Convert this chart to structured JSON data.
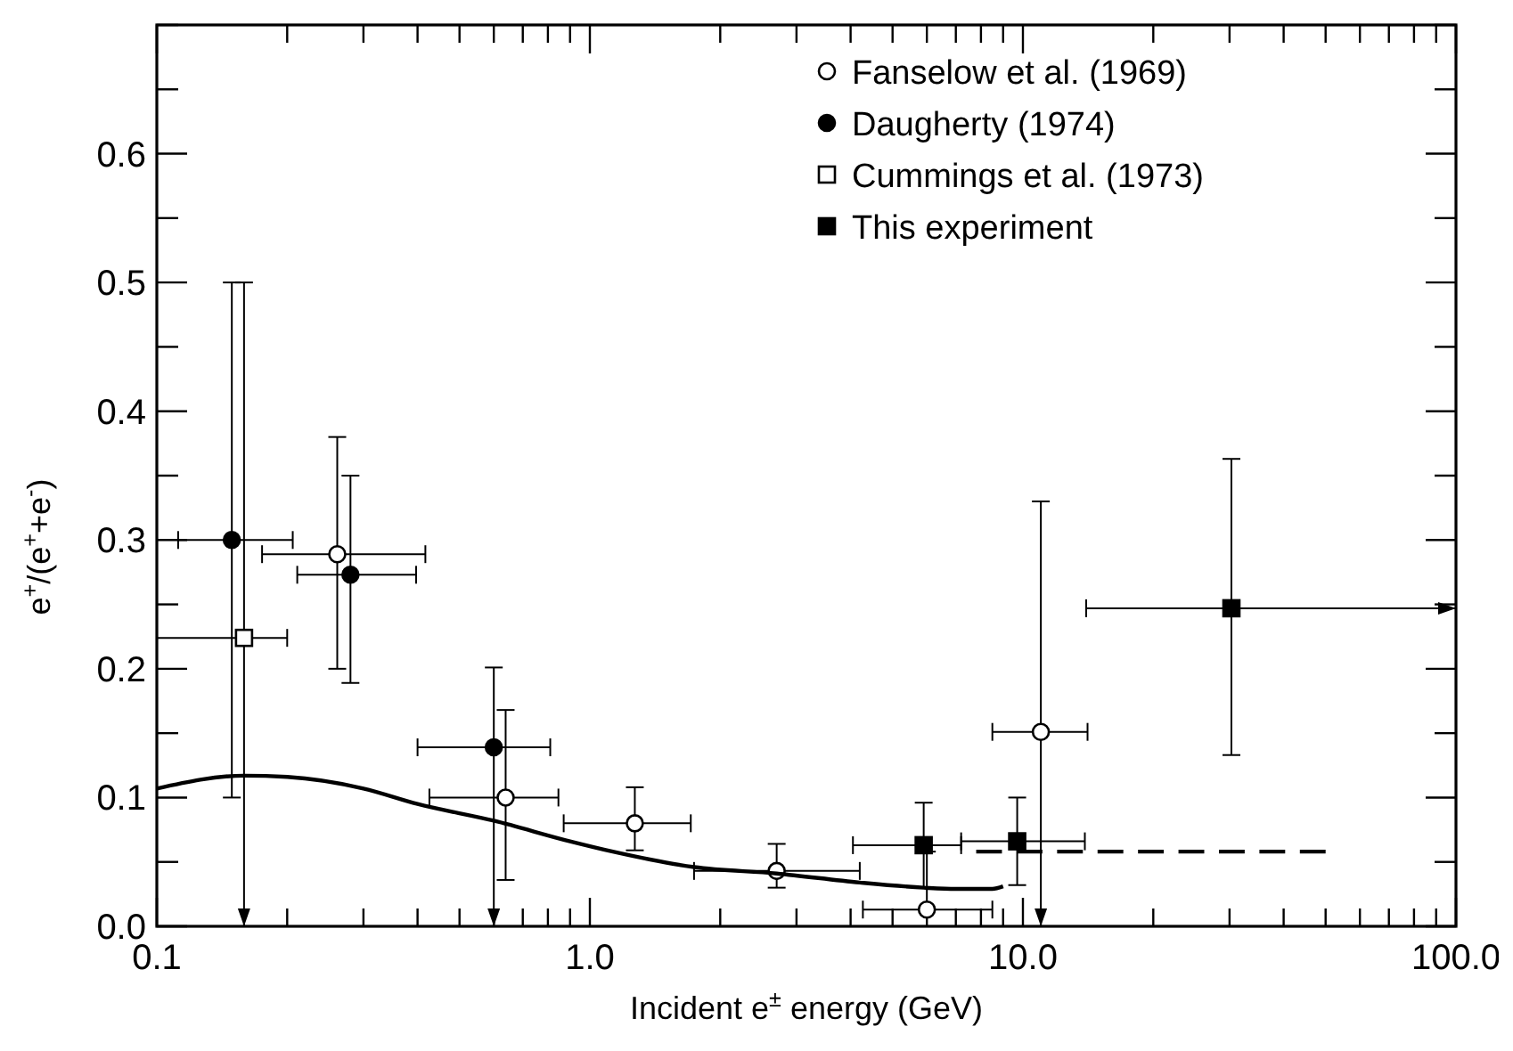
{
  "chart_data": {
    "type": "scatter",
    "xlabel": "Incident e$^{±}$ energy (GeV)",
    "ylabel": "e$^{+}$/(e$^{+}$+e$^{-}$)",
    "log": "x",
    "xlim": [
      0.1,
      100
    ],
    "xticks": [
      {
        "value": 0.1,
        "label": "0.1"
      },
      {
        "value": 0.2,
        "label": null
      },
      {
        "value": 0.3,
        "label": null
      },
      {
        "value": 0.4,
        "label": null
      },
      {
        "value": 0.5,
        "label": null
      },
      {
        "value": 0.6,
        "label": null
      },
      {
        "value": 0.7,
        "label": null
      },
      {
        "value": 0.8,
        "label": null
      },
      {
        "value": 0.9,
        "label": null
      },
      {
        "value": 1,
        "label": "1.0"
      },
      {
        "value": 2,
        "label": null
      },
      {
        "value": 3,
        "label": null
      },
      {
        "value": 4,
        "label": null
      },
      {
        "value": 5,
        "label": null
      },
      {
        "value": 6,
        "label": null
      },
      {
        "value": 7,
        "label": null
      },
      {
        "value": 8,
        "label": null
      },
      {
        "value": 9,
        "label": null
      },
      {
        "value": 10,
        "label": "10.0"
      },
      {
        "value": 20,
        "label": null
      },
      {
        "value": 30,
        "label": null
      },
      {
        "value": 40,
        "label": null
      },
      {
        "value": 50,
        "label": null
      },
      {
        "value": 60,
        "label": null
      },
      {
        "value": 70,
        "label": null
      },
      {
        "value": 80,
        "label": null
      },
      {
        "value": 90,
        "label": null
      },
      {
        "value": 100,
        "label": "100.0"
      }
    ],
    "ylim": [
      0,
      0.7
    ],
    "yticks": [
      {
        "value": 0,
        "label": "0.0"
      },
      {
        "value": 0.05,
        "label": null
      },
      0.1,
      {
        "value": 0.15,
        "label": null
      },
      0.2,
      {
        "value": 0.25,
        "label": null
      },
      0.3,
      {
        "value": 0.35,
        "label": null
      },
      0.4,
      {
        "value": 0.45,
        "label": null
      },
      0.5,
      {
        "value": 0.55,
        "label": null
      },
      0.6,
      {
        "value": 0.65,
        "label": null
      },
      {
        "value": 0.7,
        "label": null
      }
    ],
    "grid": false,
    "legend": "top",
    "series": [
      {
        "name": "Fanselow et al. (1969)",
        "marker": "circle",
        "color": "#ffffff",
        "x": [
          0.261,
          0.639,
          1.27,
          2.7,
          6.0,
          11.0
        ],
        "values": [
          0.289,
          0.1,
          0.08,
          0.043,
          0.013,
          0.151
        ],
        "errors": [
          [
            0.2,
            0.38
          ],
          [
            0.036,
            0.168
          ],
          [
            0.059,
            0.108
          ],
          [
            0.03,
            0.064
          ],
          [
            0.013,
            0.058
          ],
          [
            0,
            0.33
          ]
        ],
        "xerrors": [
          [
            0.175,
            0.417
          ],
          [
            0.426,
            0.846
          ],
          [
            0.87,
            1.71
          ],
          [
            1.74,
            4.2
          ],
          [
            4.27,
            8.5
          ],
          [
            8.5,
            14.1
          ]
        ]
      },
      {
        "name": "Daugherty (1974)",
        "marker": "circle",
        "color": "#000000",
        "x": [
          0.149,
          0.28,
          0.6
        ],
        "values": [
          0.3,
          0.273,
          0.139
        ],
        "errors": [
          [
            0.1,
            0.5
          ],
          [
            0.189,
            0.35
          ],
          [
            0,
            0.201
          ]
        ],
        "xerrors": [
          [
            0.112,
            0.206
          ],
          [
            0.211,
            0.397
          ],
          [
            0.4,
            0.81
          ]
        ]
      },
      {
        "name": "Cummings et al. (1973)",
        "marker": "square",
        "color": "#ffffff",
        "x": [
          0.159
        ],
        "values": [
          0.224
        ],
        "errors": [
          [
            0,
            0.5
          ]
        ],
        "xerrors": [
          [
            0.1,
            0.2
          ]
        ]
      },
      {
        "name": "This experiment",
        "marker": "square",
        "color": "#000000",
        "x": [
          5.9,
          9.7,
          30.3
        ],
        "values": [
          0.063,
          0.066,
          0.247
        ],
        "errors": [
          [
            0.03,
            0.096
          ],
          [
            0.032,
            0.1
          ],
          [
            0.133,
            0.363
          ]
        ],
        "xerrors": [
          [
            4.05,
            7.2
          ],
          [
            7.2,
            13.9
          ],
          [
            14.0,
            100
          ]
        ]
      },
      {
        "type": "line",
        "color": "#000000",
        "line_style": "solid",
        "x": [
          0.1,
          0.159,
          0.2,
          0.3,
          0.4,
          0.6,
          0.9,
          1.13,
          1.74,
          2.7,
          4.2,
          5.9,
          7,
          8.5,
          9.0
        ],
        "values": [
          0.107,
          0.117,
          0.116,
          0.107,
          0.095,
          0.082,
          0.066,
          0.058,
          0.046,
          0.041,
          0.034,
          0.03,
          0.029,
          0.029,
          0.031
        ]
      },
      {
        "type": "line",
        "color": "#000000",
        "line_style": "dashed",
        "x": [
          7.8,
          50
        ],
        "values": [
          0.058,
          0.058
        ]
      }
    ]
  }
}
